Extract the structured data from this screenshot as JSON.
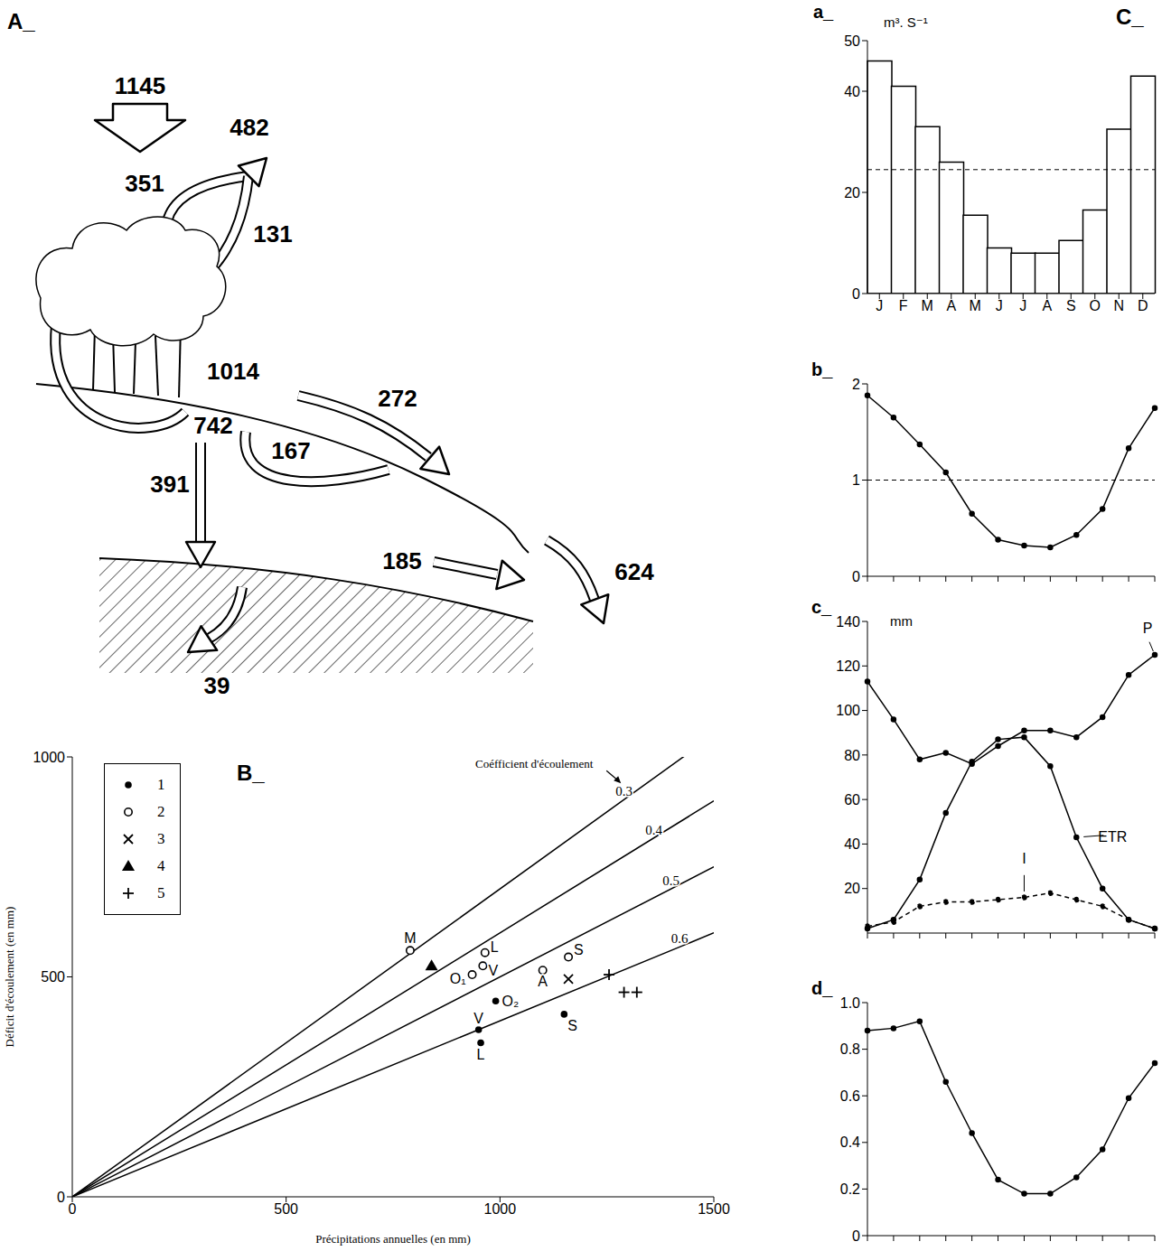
{
  "diagram": {
    "label": "A_",
    "flows": [
      1145,
      482,
      351,
      131,
      1014,
      742,
      391,
      167,
      272,
      185,
      624,
      39
    ]
  },
  "group_label": "C_",
  "chart_data": [
    {
      "type": "scatter",
      "title": "B_",
      "xlabel": "Précipitations annuelles (en mm)",
      "ylabel": "Déficit d'écoulement (en mm)",
      "xlim": [
        0,
        1500
      ],
      "ylim": [
        0,
        1000
      ],
      "xticks": [
        0,
        500,
        1000,
        1500
      ],
      "yticks": [
        0,
        500,
        1000
      ],
      "legend": "upper left",
      "annotation": "Coéfficient d'écoulement",
      "series": [
        {
          "name": "1",
          "color": "#000000",
          "marker": "dot",
          "x": [
            990,
            950,
            955,
            1150
          ],
          "values": [
            445,
            380,
            350,
            415
          ],
          "point_labels": [
            "O₂",
            "V",
            "L",
            "S"
          ]
        },
        {
          "name": "2",
          "color": "#000000",
          "marker": "circle",
          "x": [
            790,
            965,
            960,
            935,
            1100,
            1160
          ],
          "values": [
            560,
            555,
            525,
            505,
            515,
            545
          ],
          "point_labels": [
            "M",
            "L",
            "V",
            "O₁",
            "A",
            "S"
          ]
        },
        {
          "name": "3",
          "color": "#000000",
          "marker": "x",
          "x": [
            1160
          ],
          "values": [
            495
          ]
        },
        {
          "name": "4",
          "color": "#000000",
          "marker": "triangle",
          "x": [
            840
          ],
          "values": [
            525
          ]
        },
        {
          "name": "5",
          "color": "#000000",
          "marker": "plus",
          "x": [
            1255,
            1290,
            1320
          ],
          "values": [
            505,
            465,
            465
          ]
        }
      ],
      "lines": [
        {
          "name": "0.3",
          "color": "#000000",
          "line_style": "solid",
          "x": [
            0,
            1500
          ],
          "values": [
            0,
            1050
          ]
        },
        {
          "name": "0.4",
          "color": "#000000",
          "line_style": "solid",
          "x": [
            0,
            1500
          ],
          "values": [
            0,
            900
          ]
        },
        {
          "name": "0.5",
          "color": "#000000",
          "line_style": "solid",
          "x": [
            0,
            1500
          ],
          "values": [
            0,
            750
          ]
        },
        {
          "name": "0.6",
          "color": "#000000",
          "line_style": "solid",
          "x": [
            0,
            1500
          ],
          "values": [
            0,
            600
          ]
        }
      ]
    },
    {
      "type": "bar",
      "title": "a_",
      "ylabel": "m³. S⁻¹",
      "categories": [
        "J",
        "F",
        "M",
        "A",
        "M",
        "J",
        "J",
        "A",
        "S",
        "O",
        "N",
        "D"
      ],
      "values": [
        46,
        41,
        33,
        26,
        15.5,
        9,
        8,
        8,
        10.5,
        16.5,
        32.5,
        43
      ],
      "color": "#ffffff",
      "reference_line": 24.5,
      "ylim": [
        0,
        50
      ],
      "yticks": [
        0,
        20,
        40,
        50
      ]
    },
    {
      "type": "line",
      "title": "b_",
      "categories": [
        null,
        null,
        null,
        null,
        null,
        null,
        null,
        null,
        null,
        null,
        null,
        null
      ],
      "series": [
        {
          "name": null,
          "color": "#000000",
          "marker": "dot",
          "line_style": "solid",
          "values": [
            1.88,
            1.65,
            1.37,
            1.08,
            0.65,
            0.38,
            0.32,
            0.3,
            0.43,
            0.7,
            1.33,
            1.75
          ]
        }
      ],
      "reference_line": 1,
      "ylim": [
        0,
        2
      ],
      "yticks": [
        0,
        1,
        2
      ],
      "tick_labels": "y"
    },
    {
      "type": "line",
      "title": "c_",
      "ylabel": "mm",
      "categories": [
        null,
        null,
        null,
        null,
        null,
        null,
        null,
        null,
        null,
        null,
        null,
        null
      ],
      "series": [
        {
          "name": "P",
          "color": "#000000",
          "marker": "dot",
          "line_style": "solid",
          "values": [
            113,
            96,
            78,
            81,
            76,
            84,
            91,
            91,
            88,
            97,
            116,
            125
          ]
        },
        {
          "name": "ETR",
          "color": "#000000",
          "marker": "dot",
          "line_style": "solid",
          "values": [
            2,
            6,
            24,
            54,
            77,
            87,
            88,
            75,
            43,
            20,
            6,
            2
          ]
        },
        {
          "name": "I",
          "color": "#000000",
          "marker": "dot",
          "line_style": "dashed",
          "values": [
            3,
            5,
            12,
            14,
            14,
            15,
            16,
            18,
            15,
            12,
            6,
            2
          ]
        }
      ],
      "ylim": [
        0,
        140
      ],
      "yticks": [
        20,
        40,
        60,
        80,
        100,
        120,
        140
      ],
      "tick_labels": "y"
    },
    {
      "type": "line",
      "title": "d_",
      "categories": [
        null,
        null,
        null,
        null,
        null,
        null,
        null,
        null,
        null,
        null,
        null,
        null
      ],
      "series": [
        {
          "name": null,
          "color": "#000000",
          "marker": "dot",
          "line_style": "solid",
          "values": [
            0.88,
            0.89,
            0.92,
            0.66,
            0.44,
            0.24,
            0.18,
            0.18,
            0.25,
            0.37,
            0.59,
            0.74
          ]
        }
      ],
      "ylim": [
        0,
        1
      ],
      "yticks": [
        0,
        0.2,
        0.4,
        0.6,
        0.8,
        {
          "value": 1,
          "label": "1.0"
        }
      ],
      "tick_labels": "y"
    }
  ]
}
